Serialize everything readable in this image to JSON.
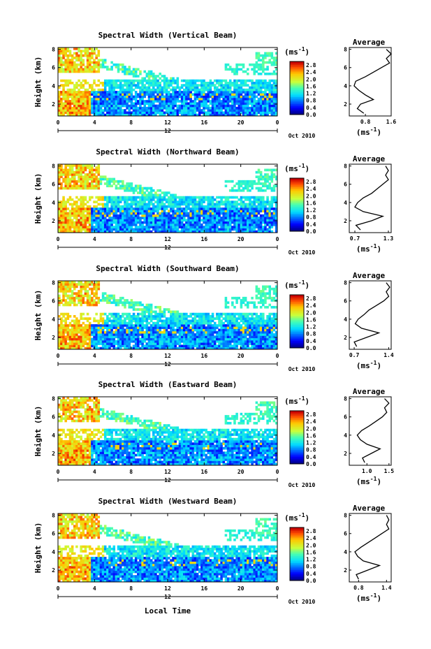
{
  "figure": {
    "xlabel": "Local Time",
    "date_label": "Oct 2010",
    "colorbar_unit": "(ms",
    "unit_exp": "-1",
    "unit_close": ")",
    "profile_title": "Average"
  },
  "chart_data": [
    {
      "type": "heatmap",
      "title": "Spectral Width (Vertical Beam)",
      "ylabel": "Height (km)",
      "x_ticks": [
        "0",
        "4",
        "8",
        "12",
        "16",
        "20",
        "0"
      ],
      "day_label": "12",
      "y_ticks": [
        "2",
        "4",
        "6",
        "8"
      ],
      "ylim": [
        0.7,
        8.2
      ],
      "colorbar_ticks": [
        "0.0",
        "0.4",
        "0.8",
        "1.2",
        "1.6",
        "2.0",
        "2.4",
        "2.8"
      ],
      "colorbar_range": [
        0.0,
        3.0
      ],
      "profile": {
        "xlim": [
          0.3,
          1.6
        ],
        "x_ticks": [
          "0.8",
          "1.6"
        ],
        "y": [
          1.0,
          1.5,
          2.0,
          2.5,
          3.0,
          3.5,
          4.0,
          4.5,
          5.0,
          5.5,
          6.0,
          6.5,
          7.0,
          7.5,
          8.0
        ],
        "x": [
          0.75,
          0.55,
          0.65,
          1.05,
          0.8,
          0.6,
          0.45,
          0.5,
          0.8,
          1.05,
          1.3,
          1.55,
          1.45,
          1.6,
          1.45
        ]
      }
    },
    {
      "type": "heatmap",
      "title": "Spectral Width (Northward Beam)",
      "ylabel": "Height (km)",
      "x_ticks": [
        "0",
        "4",
        "8",
        "12",
        "16",
        "20",
        "0"
      ],
      "day_label": "12",
      "y_ticks": [
        "2",
        "4",
        "6",
        "8"
      ],
      "ylim": [
        0.7,
        8.2
      ],
      "colorbar_ticks": [
        "0.0",
        "0.4",
        "0.8",
        "1.2",
        "1.6",
        "2.0",
        "2.4",
        "2.8"
      ],
      "colorbar_range": [
        0.0,
        3.0
      ],
      "profile": {
        "xlim": [
          0.6,
          1.35
        ],
        "x_ticks": [
          "0.7",
          "1.3"
        ],
        "y": [
          1.0,
          1.5,
          2.0,
          2.5,
          3.0,
          3.5,
          4.0,
          4.5,
          5.0,
          5.5,
          6.0,
          6.5,
          7.0,
          7.5,
          8.0
        ],
        "x": [
          0.8,
          0.72,
          1.0,
          1.2,
          0.85,
          0.7,
          0.75,
          0.85,
          1.0,
          1.1,
          1.2,
          1.3,
          1.25,
          1.3,
          1.25
        ]
      }
    },
    {
      "type": "heatmap",
      "title": "Spectral Width (Southward Beam)",
      "ylabel": "Height (km)",
      "x_ticks": [
        "0",
        "4",
        "8",
        "12",
        "16",
        "20",
        "0"
      ],
      "day_label": "12",
      "y_ticks": [
        "2",
        "4",
        "6",
        "8"
      ],
      "ylim": [
        0.7,
        8.2
      ],
      "colorbar_ticks": [
        "0.0",
        "0.4",
        "0.8",
        "1.2",
        "1.6",
        "2.0",
        "2.4",
        "2.8"
      ],
      "colorbar_range": [
        0.0,
        3.0
      ],
      "profile": {
        "xlim": [
          0.6,
          1.45
        ],
        "x_ticks": [
          "0.7",
          "1.4"
        ],
        "y": [
          1.0,
          1.5,
          2.0,
          2.5,
          3.0,
          3.5,
          4.0,
          4.5,
          5.0,
          5.5,
          6.0,
          6.5,
          7.0,
          7.5,
          8.0
        ],
        "x": [
          0.75,
          0.7,
          0.95,
          1.2,
          0.85,
          0.72,
          0.78,
          0.9,
          1.0,
          1.15,
          1.3,
          1.4,
          1.35,
          1.42,
          1.35
        ]
      }
    },
    {
      "type": "heatmap",
      "title": "Spectral Width (Eastward Beam)",
      "ylabel": "Height (km)",
      "x_ticks": [
        "0",
        "4",
        "8",
        "12",
        "16",
        "20",
        "0"
      ],
      "day_label": "12",
      "y_ticks": [
        "2",
        "4",
        "6",
        "8"
      ],
      "ylim": [
        0.7,
        8.2
      ],
      "colorbar_ticks": [
        "0.0",
        "0.4",
        "0.8",
        "1.2",
        "1.6",
        "2.0",
        "2.4",
        "2.8"
      ],
      "colorbar_range": [
        0.0,
        3.0
      ],
      "profile": {
        "xlim": [
          0.6,
          1.55
        ],
        "x_ticks": [
          "1.0",
          "1.5"
        ],
        "y": [
          1.0,
          1.5,
          2.0,
          2.5,
          3.0,
          3.5,
          4.0,
          4.5,
          5.0,
          5.5,
          6.0,
          6.5,
          7.0,
          7.5,
          8.0
        ],
        "x": [
          0.95,
          0.9,
          1.1,
          1.3,
          1.0,
          0.85,
          0.78,
          0.88,
          1.05,
          1.2,
          1.35,
          1.45,
          1.4,
          1.5,
          1.4
        ]
      }
    },
    {
      "type": "heatmap",
      "title": "Spectral Width (Westward Beam)",
      "ylabel": "Height (km)",
      "x_ticks": [
        "0",
        "4",
        "8",
        "12",
        "16",
        "20",
        "0"
      ],
      "day_label": "12",
      "y_ticks": [
        "2",
        "4",
        "6",
        "8"
      ],
      "ylim": [
        0.7,
        8.2
      ],
      "colorbar_ticks": [
        "0.0",
        "0.4",
        "0.8",
        "1.2",
        "1.6",
        "2.0",
        "2.4",
        "2.8"
      ],
      "colorbar_range": [
        0.0,
        3.0
      ],
      "profile": {
        "xlim": [
          0.6,
          1.5
        ],
        "x_ticks": [
          "0.8",
          "1.4"
        ],
        "y": [
          1.0,
          1.5,
          2.0,
          2.5,
          3.0,
          3.5,
          4.0,
          4.5,
          5.0,
          5.5,
          6.0,
          6.5,
          7.0,
          7.5,
          8.0
        ],
        "x": [
          0.8,
          0.75,
          1.0,
          1.25,
          0.9,
          0.78,
          0.72,
          0.85,
          1.0,
          1.15,
          1.3,
          1.45,
          1.4,
          1.45,
          1.4
        ]
      }
    }
  ]
}
